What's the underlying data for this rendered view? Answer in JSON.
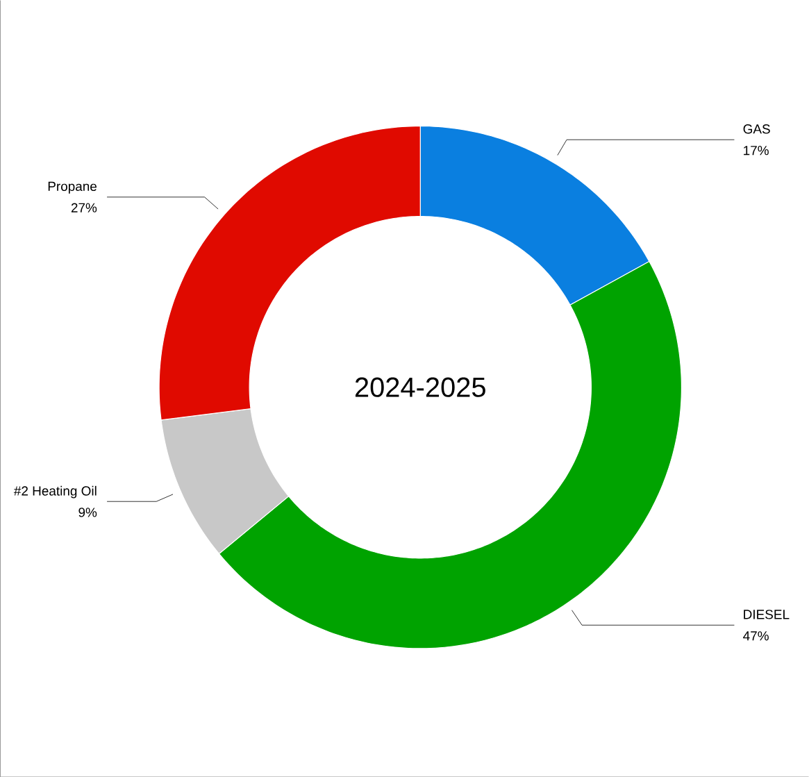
{
  "chart_data": {
    "type": "donut",
    "title": "2024-2025",
    "categories": [
      "GAS",
      "DIESEL",
      "#2 Heating Oil",
      "Propane"
    ],
    "values": [
      17,
      47,
      9,
      27
    ],
    "value_labels": [
      "17%",
      "47%",
      "9%",
      "27%"
    ],
    "colors": [
      "#0a7fe0",
      "#00a300",
      "#c8c8c8",
      "#e00a00"
    ]
  }
}
